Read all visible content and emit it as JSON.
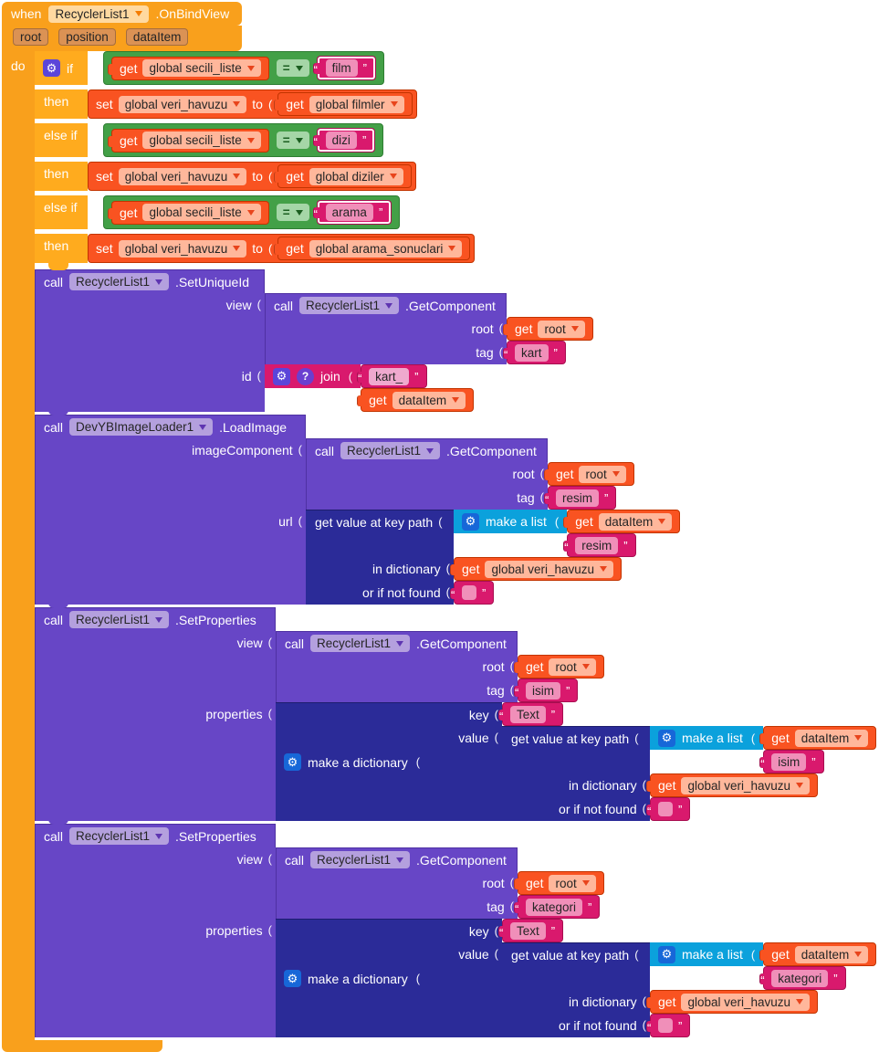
{
  "colors": {
    "event_orange": "#F9A01C",
    "control_amber": "#FFAB1E",
    "logic_green": "#43A047",
    "text_magenta": "#D9196D",
    "variables_orange": "#F95321",
    "component_purple": "#6746C6",
    "dictionary_navy": "#2B2B98",
    "list_cyan": "#0BA1DC"
  },
  "icons": {
    "gear": "⚙",
    "help": "?"
  },
  "event": {
    "kw": "when",
    "component": "RecyclerList1",
    "method": ".OnBindView",
    "params": [
      "root",
      "position",
      "dataItem"
    ],
    "do": "do"
  },
  "kw": {
    "if": "if",
    "then": "then",
    "elseif": "else if",
    "call": "call",
    "get": "get",
    "set": "set",
    "to": "to",
    "eq": "=",
    "join": "join",
    "makeList": "make a list",
    "makeDict": "make a dictionary",
    "gvkp": "get value at key path",
    "inDict": "in dictionary",
    "notFound": "or if not found",
    "view": "view",
    "id": "id",
    "imageComponent": "imageComponent",
    "url": "url",
    "root": "root",
    "tag": "tag",
    "properties": "properties",
    "key": "key",
    "value": "value"
  },
  "ifs": [
    {
      "get": "global secili_liste",
      "cmp": "film",
      "setVar": "global veri_havuzu",
      "setTo": "global filmler"
    },
    {
      "get": "global secili_liste",
      "cmp": "dizi",
      "setVar": "global veri_havuzu",
      "setTo": "global diziler"
    },
    {
      "get": "global secili_liste",
      "cmp": "arama",
      "setVar": "global veri_havuzu",
      "setTo": "global arama_sonuclari"
    }
  ],
  "setUniqueId": {
    "component": "RecyclerList1",
    "method": ".SetUniqueId",
    "getComponent": {
      "component": "RecyclerList1",
      "method": ".GetComponent",
      "root": "root",
      "tag": "kart"
    },
    "join": {
      "text": "kart_",
      "get": "dataItem"
    }
  },
  "loadImage": {
    "component": "DevYBImageLoader1",
    "method": ".LoadImage",
    "getComponent": {
      "component": "RecyclerList1",
      "method": ".GetComponent",
      "root": "root",
      "tag": "resim"
    },
    "keyPath": {
      "listGet": "dataItem",
      "listText": "resim",
      "dict": "global veri_havuzu",
      "default": ""
    }
  },
  "setProps1": {
    "component": "RecyclerList1",
    "method": ".SetProperties",
    "getComponent": {
      "component": "RecyclerList1",
      "method": ".GetComponent",
      "root": "root",
      "tag": "isim"
    },
    "key": "Text",
    "keyPath": {
      "listGet": "dataItem",
      "listText": "isim",
      "dict": "global veri_havuzu",
      "default": ""
    }
  },
  "setProps2": {
    "component": "RecyclerList1",
    "method": ".SetProperties",
    "getComponent": {
      "component": "RecyclerList1",
      "method": ".GetComponent",
      "root": "root",
      "tag": "kategori"
    },
    "key": "Text",
    "keyPath": {
      "listGet": "dataItem",
      "listText": "kategori",
      "dict": "global veri_havuzu",
      "default": ""
    }
  }
}
